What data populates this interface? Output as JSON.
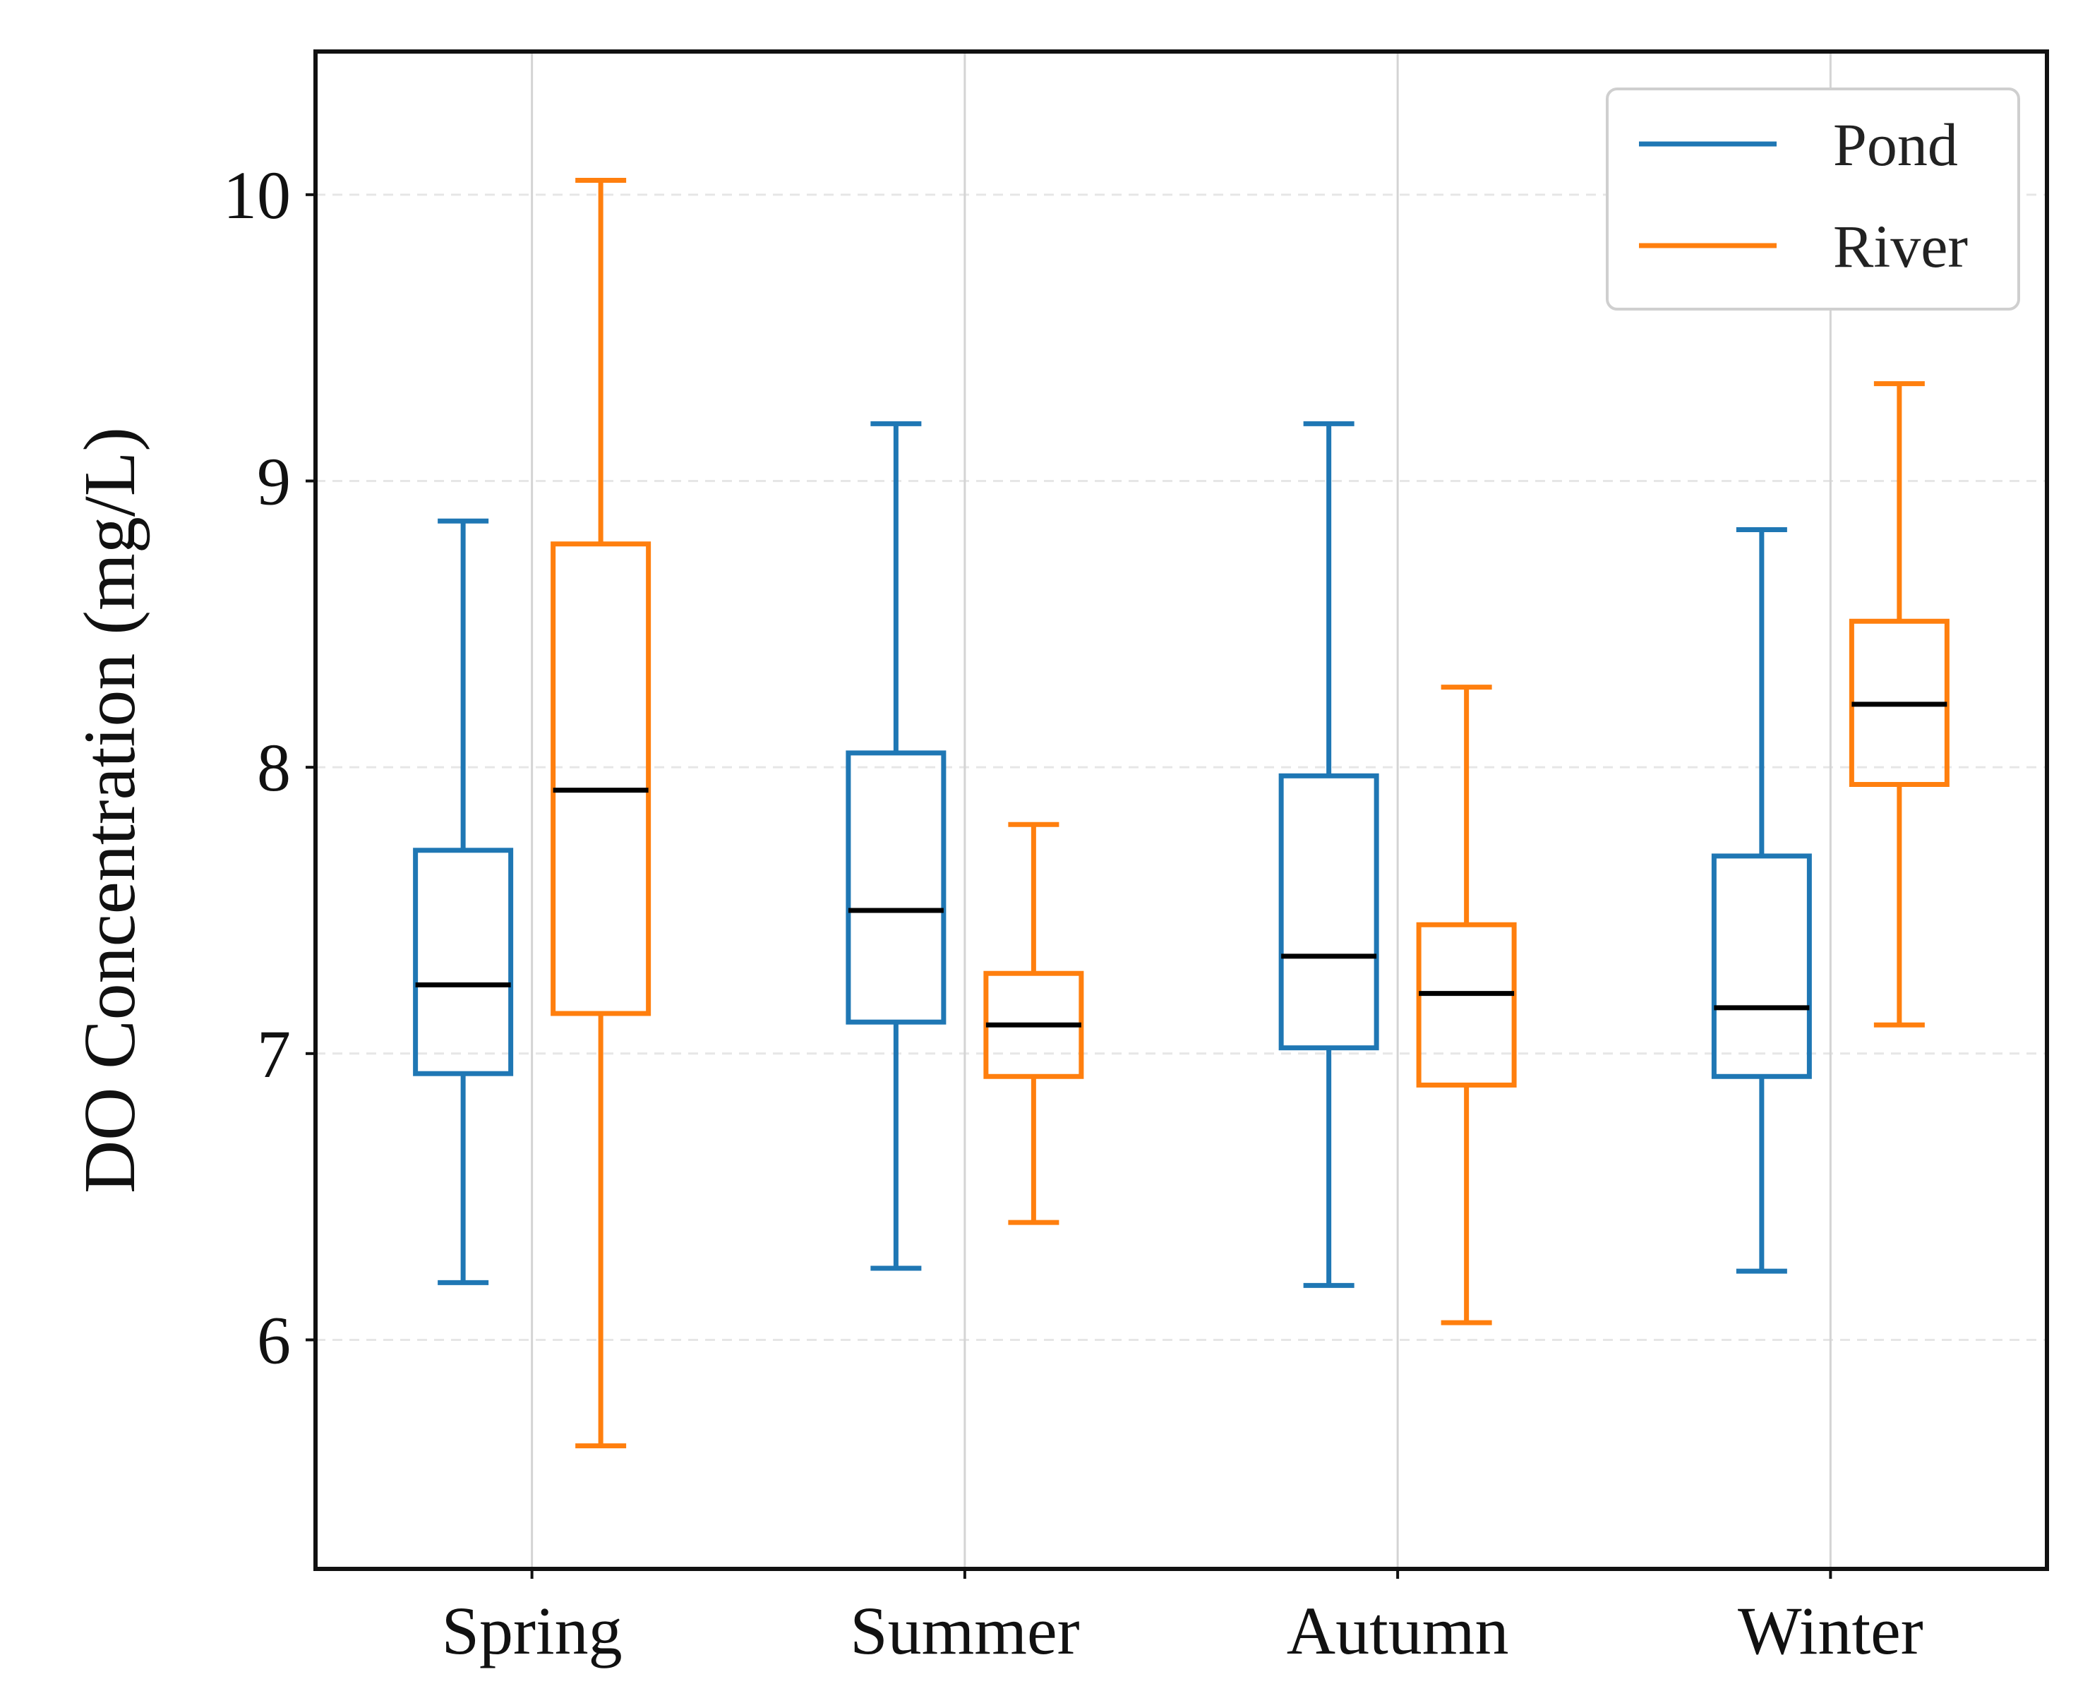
{
  "chart_data": {
    "type": "boxplot",
    "title": "",
    "xlabel": "",
    "ylabel": "DO Concentration (mg/L)",
    "categories": [
      "Spring",
      "Summer",
      "Autumn",
      "Winter"
    ],
    "ylim": [
      5.2,
      10.5
    ],
    "yticks": [
      6,
      7,
      8,
      9,
      10
    ],
    "grid": true,
    "legend_position": "top-right",
    "series": [
      {
        "name": "Pond",
        "color": "#1f77b4",
        "boxes": [
          {
            "whisker_low": 6.2,
            "q1": 6.93,
            "median": 7.24,
            "q3": 7.71,
            "whisker_high": 8.86
          },
          {
            "whisker_low": 6.25,
            "q1": 7.11,
            "median": 7.5,
            "q3": 8.05,
            "whisker_high": 9.2
          },
          {
            "whisker_low": 6.19,
            "q1": 7.02,
            "median": 7.34,
            "q3": 7.97,
            "whisker_high": 9.2
          },
          {
            "whisker_low": 6.24,
            "q1": 6.92,
            "median": 7.16,
            "q3": 7.69,
            "whisker_high": 8.83
          }
        ]
      },
      {
        "name": "River",
        "color": "#ff7f0e",
        "boxes": [
          {
            "whisker_low": 5.63,
            "q1": 7.14,
            "median": 7.92,
            "q3": 8.78,
            "whisker_high": 10.05
          },
          {
            "whisker_low": 6.41,
            "q1": 6.92,
            "median": 7.1,
            "q3": 7.28,
            "whisker_high": 7.8
          },
          {
            "whisker_low": 6.06,
            "q1": 6.89,
            "median": 7.21,
            "q3": 7.45,
            "whisker_high": 8.28
          },
          {
            "whisker_low": 7.1,
            "q1": 7.94,
            "median": 8.22,
            "q3": 8.51,
            "whisker_high": 9.34
          }
        ]
      }
    ]
  }
}
